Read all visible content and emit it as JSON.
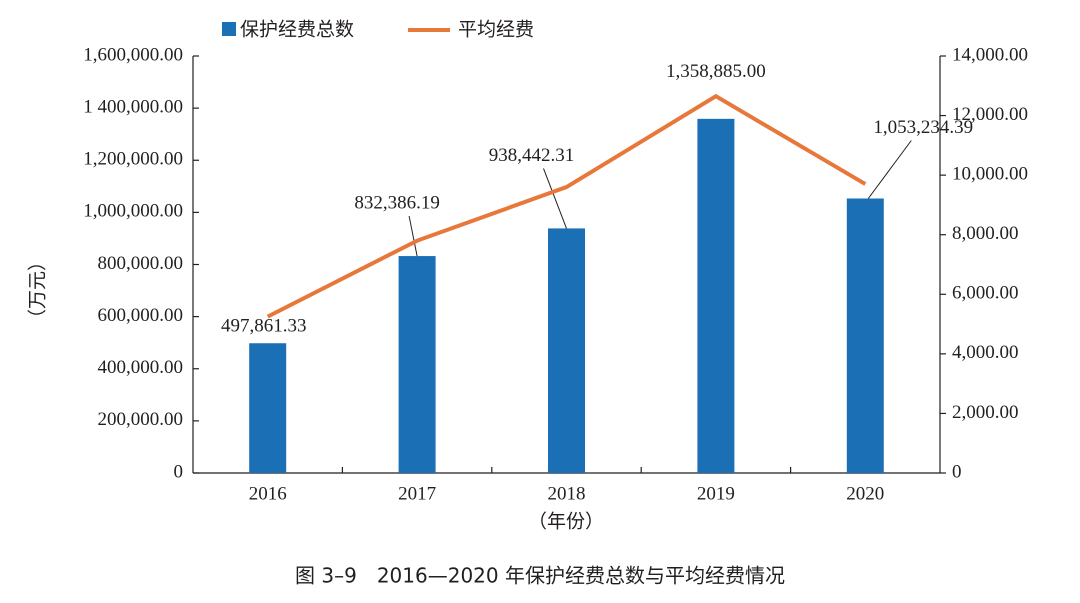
{
  "chart_data": {
    "type": "bar",
    "caption": "图 3–9　2016—2020 年保护经费总数与平均经费情况",
    "y_label": "（万元）",
    "x_label": "（年份）",
    "categories": [
      "2016",
      "2017",
      "2018",
      "2019",
      "2020"
    ],
    "series": [
      {
        "name": "保护经费总数",
        "type": "bar",
        "color": "#1a6fb5",
        "values": [
          497861.33,
          832386.19,
          938442.31,
          1358885.0,
          1053234.39
        ],
        "value_labels": [
          "497,861.33",
          "832,386.19",
          "938,442.31",
          "1,358,885.00",
          "1,053,234.39"
        ]
      },
      {
        "name": "平均经费",
        "type": "line",
        "color": "#e8773a",
        "axis": "y2",
        "values": [
          5250,
          7800,
          9600,
          12650,
          9700
        ]
      }
    ],
    "ylim": [
      0,
      1600000
    ],
    "yticks": [
      0,
      {
        "value": 200000,
        "label": "200,000.00"
      },
      {
        "value": 400000,
        "label": "400,000.00"
      },
      {
        "value": 600000,
        "label": "600,000.00"
      },
      {
        "value": 800000,
        "label": "800,000.00"
      },
      {
        "value": 1000000,
        "label": "1,000,000.00"
      },
      {
        "value": 1200000,
        "label": "1,200,000.00"
      },
      {
        "value": 1400000,
        "label": "1 400,000.00"
      },
      {
        "value": 1600000,
        "label": "1,600,000.00"
      }
    ],
    "y2lim": [
      0,
      14000
    ],
    "y2ticks": [
      0,
      {
        "value": 2000,
        "label": "2,000.00"
      },
      {
        "value": 4000,
        "label": "4,000.00"
      },
      {
        "value": 6000,
        "label": "6,000.00"
      },
      {
        "value": 8000,
        "label": "8,000.00"
      },
      {
        "value": 10000,
        "label": "10,000.00"
      },
      {
        "value": 12000,
        "label": "12,000.00"
      },
      {
        "value": 14000,
        "label": "14,000.00"
      }
    ],
    "grid": false
  }
}
